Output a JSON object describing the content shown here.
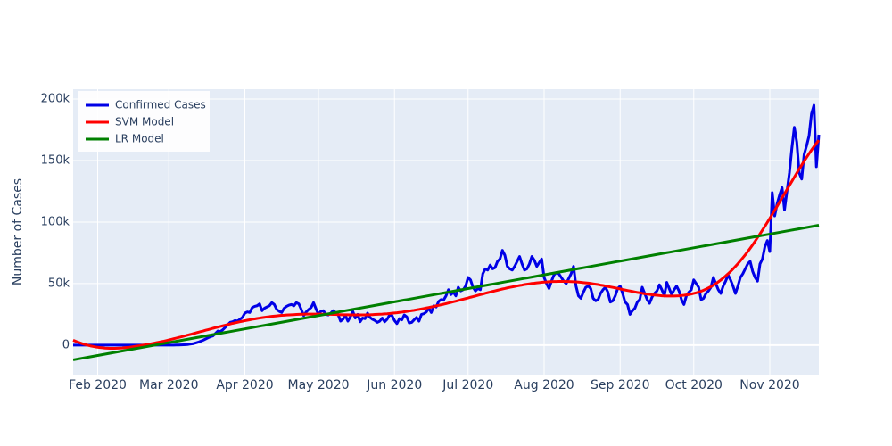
{
  "chart_data": {
    "type": "line",
    "y_axis_label": "Number of Cases",
    "categories": [
      null,
      null,
      null,
      null,
      null,
      null,
      null,
      null,
      null,
      null,
      "Feb 2020",
      null,
      null,
      null,
      null,
      null,
      null,
      null,
      null,
      null,
      null,
      null,
      null,
      null,
      null,
      null,
      null,
      null,
      null,
      null,
      null,
      null,
      null,
      null,
      null,
      null,
      null,
      null,
      null,
      "Mar 2020",
      null,
      null,
      null,
      null,
      null,
      null,
      null,
      null,
      null,
      null,
      null,
      null,
      null,
      null,
      null,
      null,
      null,
      null,
      null,
      null,
      null,
      null,
      null,
      null,
      null,
      null,
      null,
      null,
      null,
      null,
      "Apr 2020",
      null,
      null,
      null,
      null,
      null,
      null,
      null,
      null,
      null,
      null,
      null,
      null,
      null,
      null,
      null,
      null,
      null,
      null,
      null,
      null,
      null,
      null,
      null,
      null,
      null,
      null,
      null,
      null,
      null,
      "May 2020",
      null,
      null,
      null,
      null,
      null,
      null,
      null,
      null,
      null,
      null,
      null,
      null,
      null,
      null,
      null,
      null,
      null,
      null,
      null,
      null,
      null,
      null,
      null,
      null,
      null,
      null,
      null,
      null,
      null,
      null,
      "Jun 2020",
      null,
      null,
      null,
      null,
      null,
      null,
      null,
      null,
      null,
      null,
      null,
      null,
      null,
      null,
      null,
      null,
      null,
      null,
      null,
      null,
      null,
      null,
      null,
      null,
      null,
      null,
      null,
      null,
      null,
      "Jul 2020",
      null,
      null,
      null,
      null,
      null,
      null,
      null,
      null,
      null,
      null,
      null,
      null,
      null,
      null,
      null,
      null,
      null,
      null,
      null,
      null,
      null,
      null,
      null,
      null,
      null,
      null,
      null,
      null,
      null,
      null,
      "Aug 2020",
      null,
      null,
      null,
      null,
      null,
      null,
      null,
      null,
      null,
      null,
      null,
      null,
      null,
      null,
      null,
      null,
      null,
      null,
      null,
      null,
      null,
      null,
      null,
      null,
      null,
      null,
      null,
      null,
      null,
      null,
      "Sep 2020",
      null,
      null,
      null,
      null,
      null,
      null,
      null,
      null,
      null,
      null,
      null,
      null,
      null,
      null,
      null,
      null,
      null,
      null,
      null,
      null,
      null,
      null,
      null,
      null,
      null,
      null,
      null,
      null,
      null,
      "Oct 2020",
      null,
      null,
      null,
      null,
      null,
      null,
      null,
      null,
      null,
      null,
      null,
      null,
      null,
      null,
      null,
      null,
      null,
      null,
      null,
      null,
      null,
      null,
      null,
      null,
      null,
      null,
      null,
      null,
      null,
      null,
      "Nov 2020",
      null,
      null,
      null,
      null,
      null,
      null,
      null,
      null,
      null,
      null,
      null,
      null,
      null,
      null,
      null,
      null,
      null,
      null,
      null,
      null
    ],
    "series": [
      {
        "name": "Confirmed Cases",
        "color": "#0000e6",
        "values": [
          0,
          0,
          0,
          0,
          0,
          0,
          0,
          0,
          0,
          0,
          0,
          0,
          0,
          0,
          0,
          0,
          0,
          0,
          0,
          0,
          0,
          0,
          0,
          0,
          0,
          0,
          0,
          0,
          0,
          0,
          0,
          0,
          0,
          0,
          0,
          0,
          0,
          0,
          0,
          0,
          0,
          0,
          100,
          100,
          200,
          300,
          400,
          600,
          900,
          1200,
          1800,
          2400,
          3200,
          4000,
          5000,
          6000,
          6800,
          7500,
          9500,
          11500,
          11000,
          12500,
          14500,
          16500,
          18500,
          19000,
          20000,
          19500,
          21000,
          22500,
          26000,
          27000,
          26500,
          30500,
          31500,
          32000,
          33500,
          28000,
          30000,
          31000,
          32000,
          34500,
          33000,
          29000,
          27500,
          26500,
          30000,
          31500,
          32500,
          33000,
          32000,
          34500,
          33500,
          29000,
          24000,
          27000,
          29000,
          30500,
          34500,
          29500,
          25000,
          27500,
          28000,
          25000,
          24500,
          26000,
          28000,
          26500,
          25000,
          19500,
          21000,
          24000,
          19500,
          23000,
          27500,
          22000,
          25000,
          19000,
          22000,
          21500,
          26000,
          22500,
          21000,
          20000,
          18500,
          19500,
          22000,
          19000,
          21000,
          24500,
          24000,
          20000,
          17500,
          21500,
          20500,
          24500,
          23000,
          18000,
          18500,
          20500,
          22500,
          19500,
          25000,
          25500,
          27000,
          30000,
          26500,
          32000,
          31000,
          35500,
          37000,
          36500,
          40000,
          45000,
          41000,
          43000,
          40000,
          47000,
          44000,
          45000,
          48000,
          55000,
          53000,
          47000,
          44000,
          46000,
          45000,
          58000,
          62000,
          61000,
          65000,
          62000,
          63000,
          68000,
          70000,
          77000,
          73000,
          64000,
          62000,
          61000,
          64000,
          68000,
          72000,
          66000,
          61000,
          62000,
          66000,
          72000,
          69000,
          64000,
          67000,
          70000,
          55000,
          50000,
          46000,
          52000,
          57000,
          59000,
          58000,
          55000,
          52000,
          50000,
          54000,
          58000,
          64000,
          48000,
          40000,
          38000,
          43000,
          47000,
          48000,
          46000,
          38000,
          36000,
          37000,
          42000,
          45000,
          47000,
          43000,
          35000,
          36000,
          40000,
          46000,
          48000,
          42000,
          35000,
          33000,
          25000,
          28000,
          30000,
          35000,
          37000,
          47000,
          42000,
          37000,
          34000,
          39000,
          42000,
          44000,
          49000,
          45000,
          40000,
          51000,
          46000,
          41000,
          45000,
          48000,
          44000,
          37000,
          33000,
          40000,
          43000,
          45000,
          53000,
          50000,
          47000,
          37000,
          38000,
          42000,
          44000,
          47000,
          55000,
          50000,
          45000,
          42000,
          48000,
          52000,
          57000,
          53000,
          48000,
          42000,
          48000,
          55000,
          58000,
          62000,
          66000,
          68000,
          60000,
          55000,
          52000,
          66000,
          70000,
          80000,
          85000,
          76000,
          124000,
          105000,
          115000,
          122000,
          128000,
          110000,
          125000,
          140000,
          160000,
          177000,
          165000,
          140000,
          135000,
          155000,
          162000,
          170000,
          188000,
          195000,
          145000,
          171000
        ]
      },
      {
        "name": "SVM Model",
        "color": "#ff0000",
        "values": [
          4000,
          3200,
          2400,
          1700,
          1000,
          400,
          -100,
          -600,
          -1000,
          -1400,
          -1700,
          -2000,
          -2200,
          -2400,
          -2500,
          -2600,
          -2600,
          -2600,
          -2500,
          -2400,
          -2300,
          -2100,
          -1900,
          -1700,
          -1400,
          -1100,
          -800,
          -500,
          -200,
          100,
          400,
          800,
          1200,
          1600,
          2000,
          2400,
          2800,
          3200,
          3700,
          4200,
          4700,
          5200,
          5700,
          6200,
          6700,
          7200,
          7800,
          8300,
          8800,
          9400,
          9900,
          10500,
          11000,
          11500,
          12100,
          12600,
          13100,
          13700,
          14200,
          14700,
          15200,
          15700,
          16200,
          16700,
          17200,
          17700,
          18100,
          18600,
          19000,
          19400,
          19800,
          20200,
          20600,
          21000,
          21300,
          21700,
          22000,
          22300,
          22600,
          22900,
          23100,
          23400,
          23600,
          23800,
          24000,
          24200,
          24300,
          24500,
          24600,
          24700,
          24800,
          24900,
          25000,
          25100,
          25100,
          25200,
          25200,
          25200,
          25200,
          25200,
          25200,
          25200,
          25100,
          25100,
          25000,
          25000,
          24900,
          24900,
          24800,
          24800,
          24700,
          24700,
          24700,
          24600,
          24600,
          24600,
          24600,
          24600,
          24600,
          24600,
          24700,
          24700,
          24800,
          24900,
          25000,
          25100,
          25200,
          25400,
          25500,
          25700,
          25900,
          26100,
          26300,
          26600,
          26800,
          27100,
          27400,
          27700,
          28000,
          28300,
          28700,
          29000,
          29400,
          29800,
          30200,
          30600,
          31000,
          31400,
          31900,
          32300,
          32800,
          33200,
          33700,
          34200,
          34700,
          35200,
          35700,
          36200,
          36800,
          37300,
          37800,
          38300,
          38900,
          39400,
          39900,
          40500,
          41000,
          41500,
          42100,
          42600,
          43100,
          43600,
          44100,
          44600,
          45100,
          45600,
          46000,
          46500,
          46900,
          47300,
          47700,
          48100,
          48500,
          48800,
          49200,
          49500,
          49800,
          50100,
          50300,
          50600,
          50800,
          51000,
          51200,
          51300,
          51500,
          51600,
          51700,
          51700,
          51800,
          51800,
          51800,
          51700,
          51700,
          51600,
          51500,
          51400,
          51200,
          51000,
          50800,
          50600,
          50400,
          50100,
          49800,
          49500,
          49200,
          48800,
          48500,
          48100,
          47700,
          47300,
          46900,
          46500,
          46100,
          45700,
          45200,
          44800,
          44400,
          44000,
          43600,
          43200,
          42800,
          42500,
          42100,
          41800,
          41500,
          41200,
          40900,
          40700,
          40500,
          40300,
          40100,
          40000,
          39900,
          39900,
          39900,
          39900,
          40000,
          40100,
          40300,
          40500,
          40800,
          41100,
          41500,
          42000,
          42500,
          43100,
          43800,
          44600,
          45500,
          46500,
          47500,
          48700,
          50000,
          51400,
          52900,
          54500,
          56200,
          58000,
          59900,
          61900,
          64000,
          66200,
          68500,
          70900,
          73400,
          76000,
          78700,
          81500,
          84400,
          87400,
          90400,
          93500,
          96600,
          99800,
          103000,
          106300,
          109600,
          112900,
          116300,
          119700,
          123000,
          126400,
          129800,
          133100,
          136500,
          139800,
          143100,
          146300,
          149500,
          152600,
          155600,
          158500,
          161300,
          164000,
          166600
        ]
      },
      {
        "name": "LR Model",
        "color": "#008000",
        "values": [
          -12000,
          -11640,
          -11280,
          -10920,
          -10560,
          -10200,
          -9840,
          -9480,
          -9120,
          -8760,
          -8400,
          -8040,
          -7680,
          -7320,
          -6960,
          -6600,
          -6240,
          -5880,
          -5520,
          -5160,
          -4800,
          -4440,
          -4080,
          -3720,
          -3360,
          -3000,
          -2640,
          -2280,
          -1920,
          -1560,
          -1200,
          -840,
          -480,
          -120,
          240,
          600,
          960,
          1320,
          1680,
          2040,
          2400,
          2760,
          3120,
          3480,
          3840,
          4200,
          4560,
          4920,
          5280,
          5640,
          6000,
          6360,
          6720,
          7080,
          7440,
          7800,
          8160,
          8520,
          8880,
          9240,
          9600,
          9960,
          10320,
          10680,
          11040,
          11400,
          11760,
          12120,
          12480,
          12840,
          13200,
          13560,
          13920,
          14280,
          14640,
          15000,
          15360,
          15720,
          16080,
          16440,
          16800,
          17160,
          17520,
          17880,
          18240,
          18600,
          18960,
          19320,
          19680,
          20040,
          20400,
          20760,
          21120,
          21480,
          21840,
          22200,
          22560,
          22920,
          23280,
          23640,
          24000,
          24360,
          24720,
          25080,
          25440,
          25800,
          26160,
          26520,
          26880,
          27240,
          27600,
          27960,
          28320,
          28680,
          29040,
          29400,
          29760,
          30120,
          30480,
          30840,
          31200,
          31560,
          31920,
          32280,
          32640,
          33000,
          33360,
          33720,
          34080,
          34440,
          34800,
          35160,
          35520,
          35880,
          36240,
          36600,
          36960,
          37320,
          37680,
          38040,
          38400,
          38760,
          39120,
          39480,
          39840,
          40200,
          40560,
          40920,
          41280,
          41640,
          42000,
          42360,
          42720,
          43080,
          43440,
          43800,
          44160,
          44520,
          44880,
          45240,
          45600,
          45960,
          46320,
          46680,
          47040,
          47400,
          47760,
          48120,
          48480,
          48840,
          49200,
          49560,
          49920,
          50280,
          50640,
          51000,
          51360,
          51720,
          52080,
          52440,
          52800,
          53160,
          53520,
          53880,
          54240,
          54600,
          54960,
          55320,
          55680,
          56040,
          56400,
          56760,
          57120,
          57480,
          57840,
          58200,
          58560,
          58920,
          59280,
          59640,
          60000,
          60360,
          60720,
          61080,
          61440,
          61800,
          62160,
          62520,
          62880,
          63240,
          63600,
          63960,
          64320,
          64680,
          65040,
          65400,
          65760,
          66120,
          66480,
          66840,
          67200,
          67560,
          67920,
          68280,
          68640,
          69000,
          69360,
          69720,
          70080,
          70440,
          70800,
          71160,
          71520,
          71880,
          72240,
          72600,
          72960,
          73320,
          73680,
          74040,
          74400,
          74760,
          75120,
          75480,
          75840,
          76200,
          76560,
          76920,
          77280,
          77640,
          78000,
          78360,
          78720,
          79080,
          79440,
          79800,
          80160,
          80520,
          80880,
          81240,
          81600,
          81960,
          82320,
          82680,
          83040,
          83400,
          83760,
          84120,
          84480,
          84840,
          85200,
          85560,
          85920,
          86280,
          86640,
          87000,
          87360,
          87720,
          88080,
          88440,
          88800,
          89160,
          89520,
          89880,
          90240,
          90600,
          90960,
          91320,
          91680,
          92040,
          92400,
          92760,
          93120,
          93480,
          93840,
          94200,
          94560,
          94920,
          95280,
          95640,
          96000,
          96360,
          96720,
          97080,
          97440
        ]
      }
    ],
    "ylim": [
      -24000,
      208000
    ],
    "yticks": [
      0,
      {
        "value": 50000,
        "label": "50k"
      },
      {
        "value": 100000,
        "label": "100k"
      },
      {
        "value": 150000,
        "label": "150k"
      },
      {
        "value": 200000,
        "label": "200k"
      }
    ],
    "grid": true,
    "legend": "top-left"
  }
}
